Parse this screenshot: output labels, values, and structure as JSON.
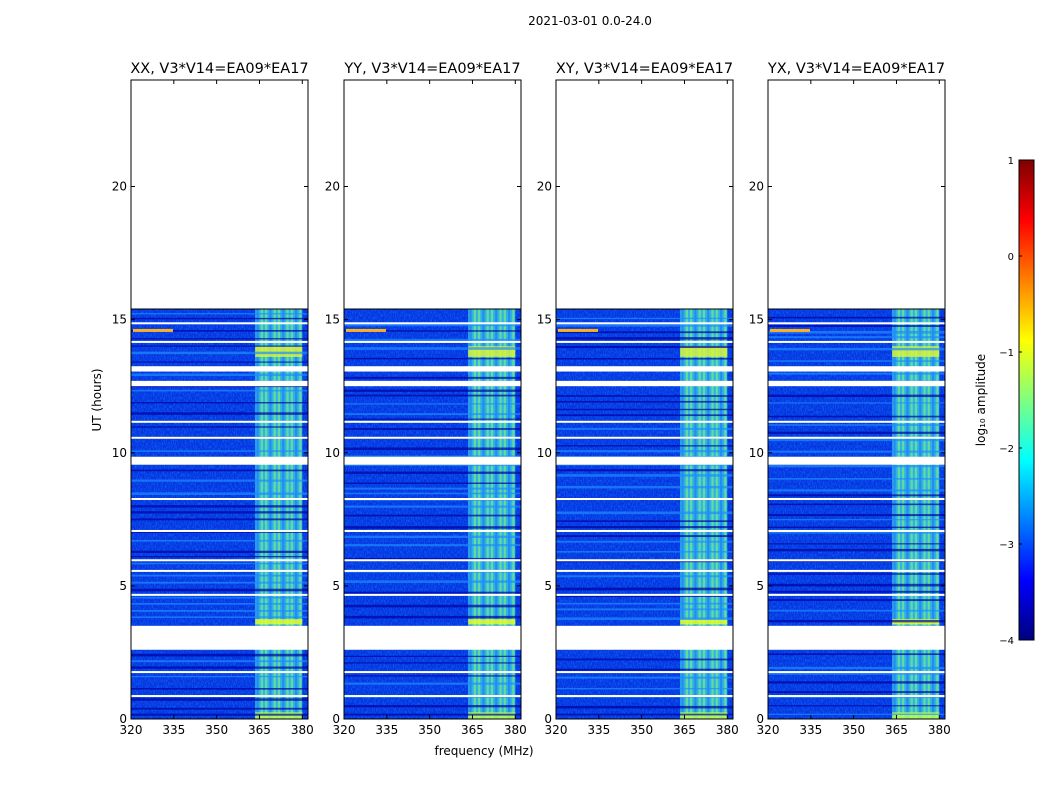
{
  "suptitle": "2021-03-01 0.0-24.0",
  "chart_data": {
    "type": "heatmap",
    "xlabel": "frequency (MHz)",
    "ylabel": "UT (hours)",
    "xlim": [
      320,
      382
    ],
    "ylim": [
      0,
      24
    ],
    "xticks": [
      320,
      335,
      350,
      365,
      380
    ],
    "yticks": [
      0,
      5,
      10,
      15,
      20
    ],
    "data_extent_hours": [
      0,
      15.4
    ],
    "gap_hours": [
      [
        2.6,
        3.5
      ],
      [
        9.55,
        9.85
      ],
      [
        12.5,
        12.7
      ],
      [
        13.05,
        13.25
      ]
    ],
    "rfi_band_mhz": [
      363.5,
      380
    ],
    "panels": [
      {
        "title": "XX, V3*V14=EA09*EA17"
      },
      {
        "title": "YY, V3*V14=EA09*EA17"
      },
      {
        "title": "XY, V3*V14=EA09*EA17"
      },
      {
        "title": "YX, V3*V14=EA09*EA17"
      }
    ],
    "colorbar": {
      "label": "log₁₀ amplitude",
      "range": [
        -4,
        1
      ],
      "ticks": [
        1,
        0,
        -1,
        -2,
        -3,
        -4
      ],
      "colormap": [
        "#00007f",
        "#0000ff",
        "#007fff",
        "#00ffff",
        "#7fff7f",
        "#ffff00",
        "#ff7f00",
        "#ff0000",
        "#7f0000"
      ]
    }
  }
}
